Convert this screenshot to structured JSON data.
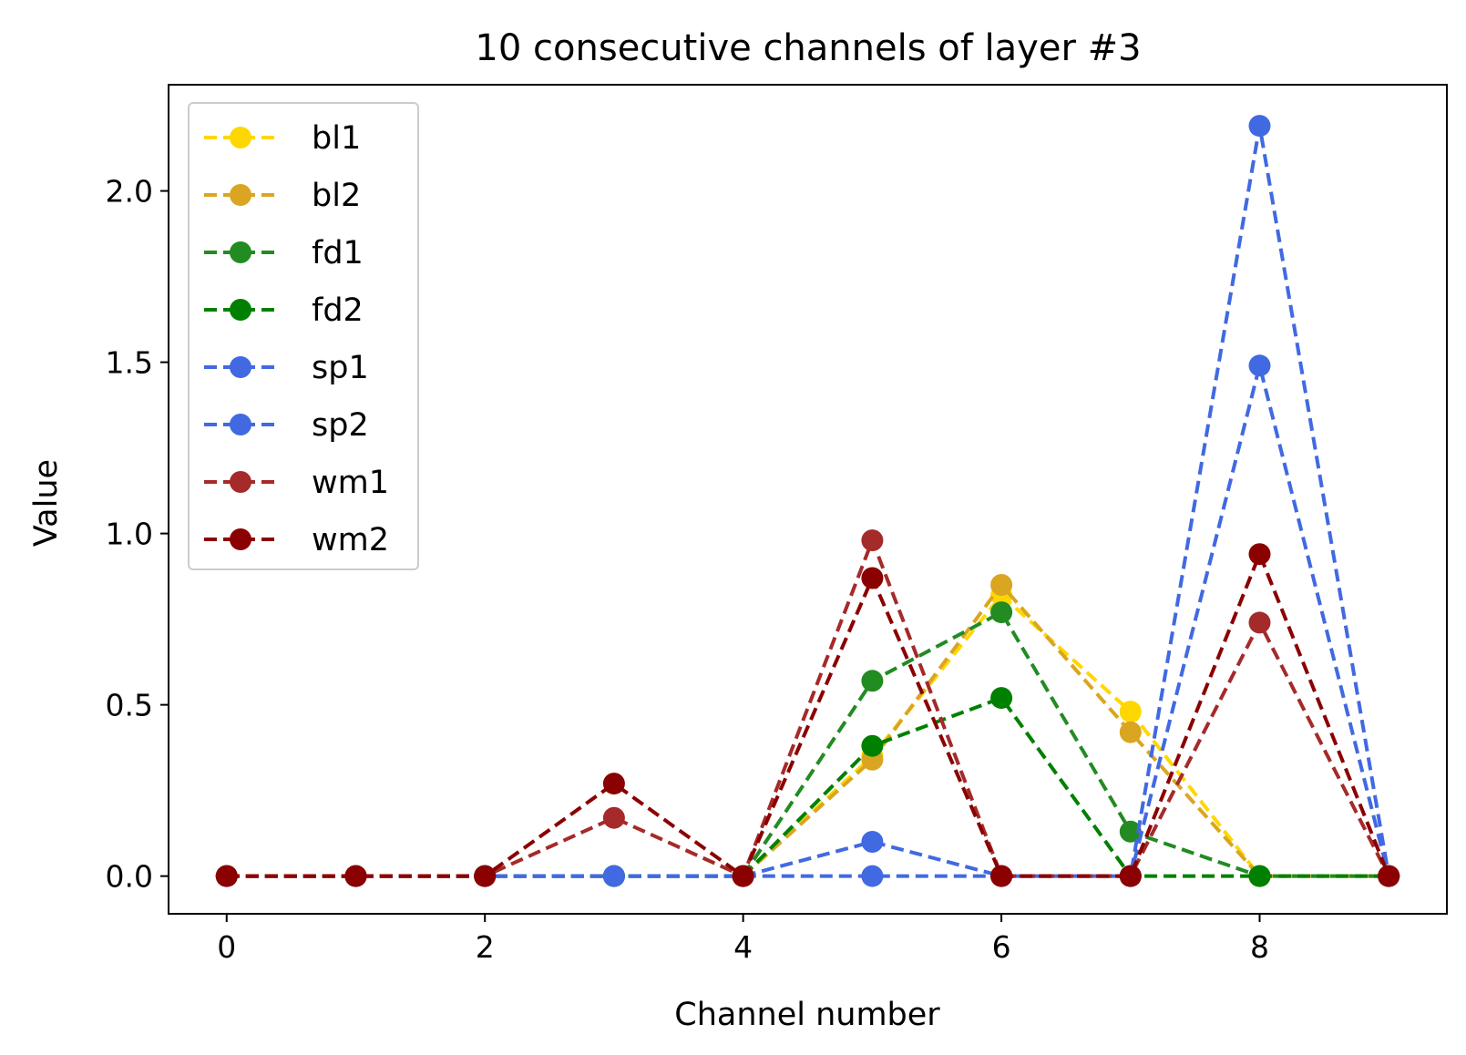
{
  "chart_data": {
    "type": "line",
    "title": "10 consecutive channels of layer #3",
    "xlabel": "Channel number",
    "ylabel": "Value",
    "x": [
      0,
      1,
      2,
      3,
      4,
      5,
      6,
      7,
      8,
      9
    ],
    "xlim": [
      -0.45,
      9.45
    ],
    "ylim": [
      -0.11,
      2.31
    ],
    "xticks": [
      0,
      2,
      4,
      6,
      8
    ],
    "xtick_labels": [
      "0",
      "2",
      "4",
      "6",
      "8"
    ],
    "yticks": [
      0.0,
      0.5,
      1.0,
      1.5,
      2.0
    ],
    "ytick_labels": [
      "0.0",
      "0.5",
      "1.0",
      "1.5",
      "2.0"
    ],
    "grid": false,
    "legend_position": "upper-left",
    "line_style": "dashed",
    "marker": "circle",
    "series": [
      {
        "name": "bl1",
        "color": "#FFD700",
        "values": [
          0,
          0,
          0,
          0,
          0,
          0.35,
          0.82,
          0.48,
          0,
          0
        ]
      },
      {
        "name": "bl2",
        "color": "#DAA520",
        "values": [
          0,
          0,
          0,
          0,
          0,
          0.34,
          0.85,
          0.42,
          0,
          0
        ]
      },
      {
        "name": "fd1",
        "color": "#228B22",
        "values": [
          0,
          0,
          0,
          0,
          0,
          0.57,
          0.77,
          0.13,
          0,
          0
        ]
      },
      {
        "name": "fd2",
        "color": "#008000",
        "values": [
          0,
          0,
          0,
          0,
          0,
          0.38,
          0.52,
          0,
          0,
          0
        ]
      },
      {
        "name": "sp1",
        "color": "#4169E1",
        "values": [
          0,
          0,
          0,
          0,
          0,
          0.1,
          0,
          0,
          2.19,
          0
        ]
      },
      {
        "name": "sp2",
        "color": "#4169E1",
        "values": [
          0,
          0,
          0,
          0,
          0,
          0,
          0,
          0,
          1.49,
          0
        ]
      },
      {
        "name": "wm1",
        "color": "#A52A2A",
        "values": [
          0,
          0,
          0,
          0.17,
          0,
          0.98,
          0,
          0,
          0.74,
          0
        ]
      },
      {
        "name": "wm2",
        "color": "#8B0000",
        "values": [
          0,
          0,
          0,
          0.27,
          0,
          0.87,
          0,
          0,
          0.94,
          0
        ]
      }
    ]
  }
}
